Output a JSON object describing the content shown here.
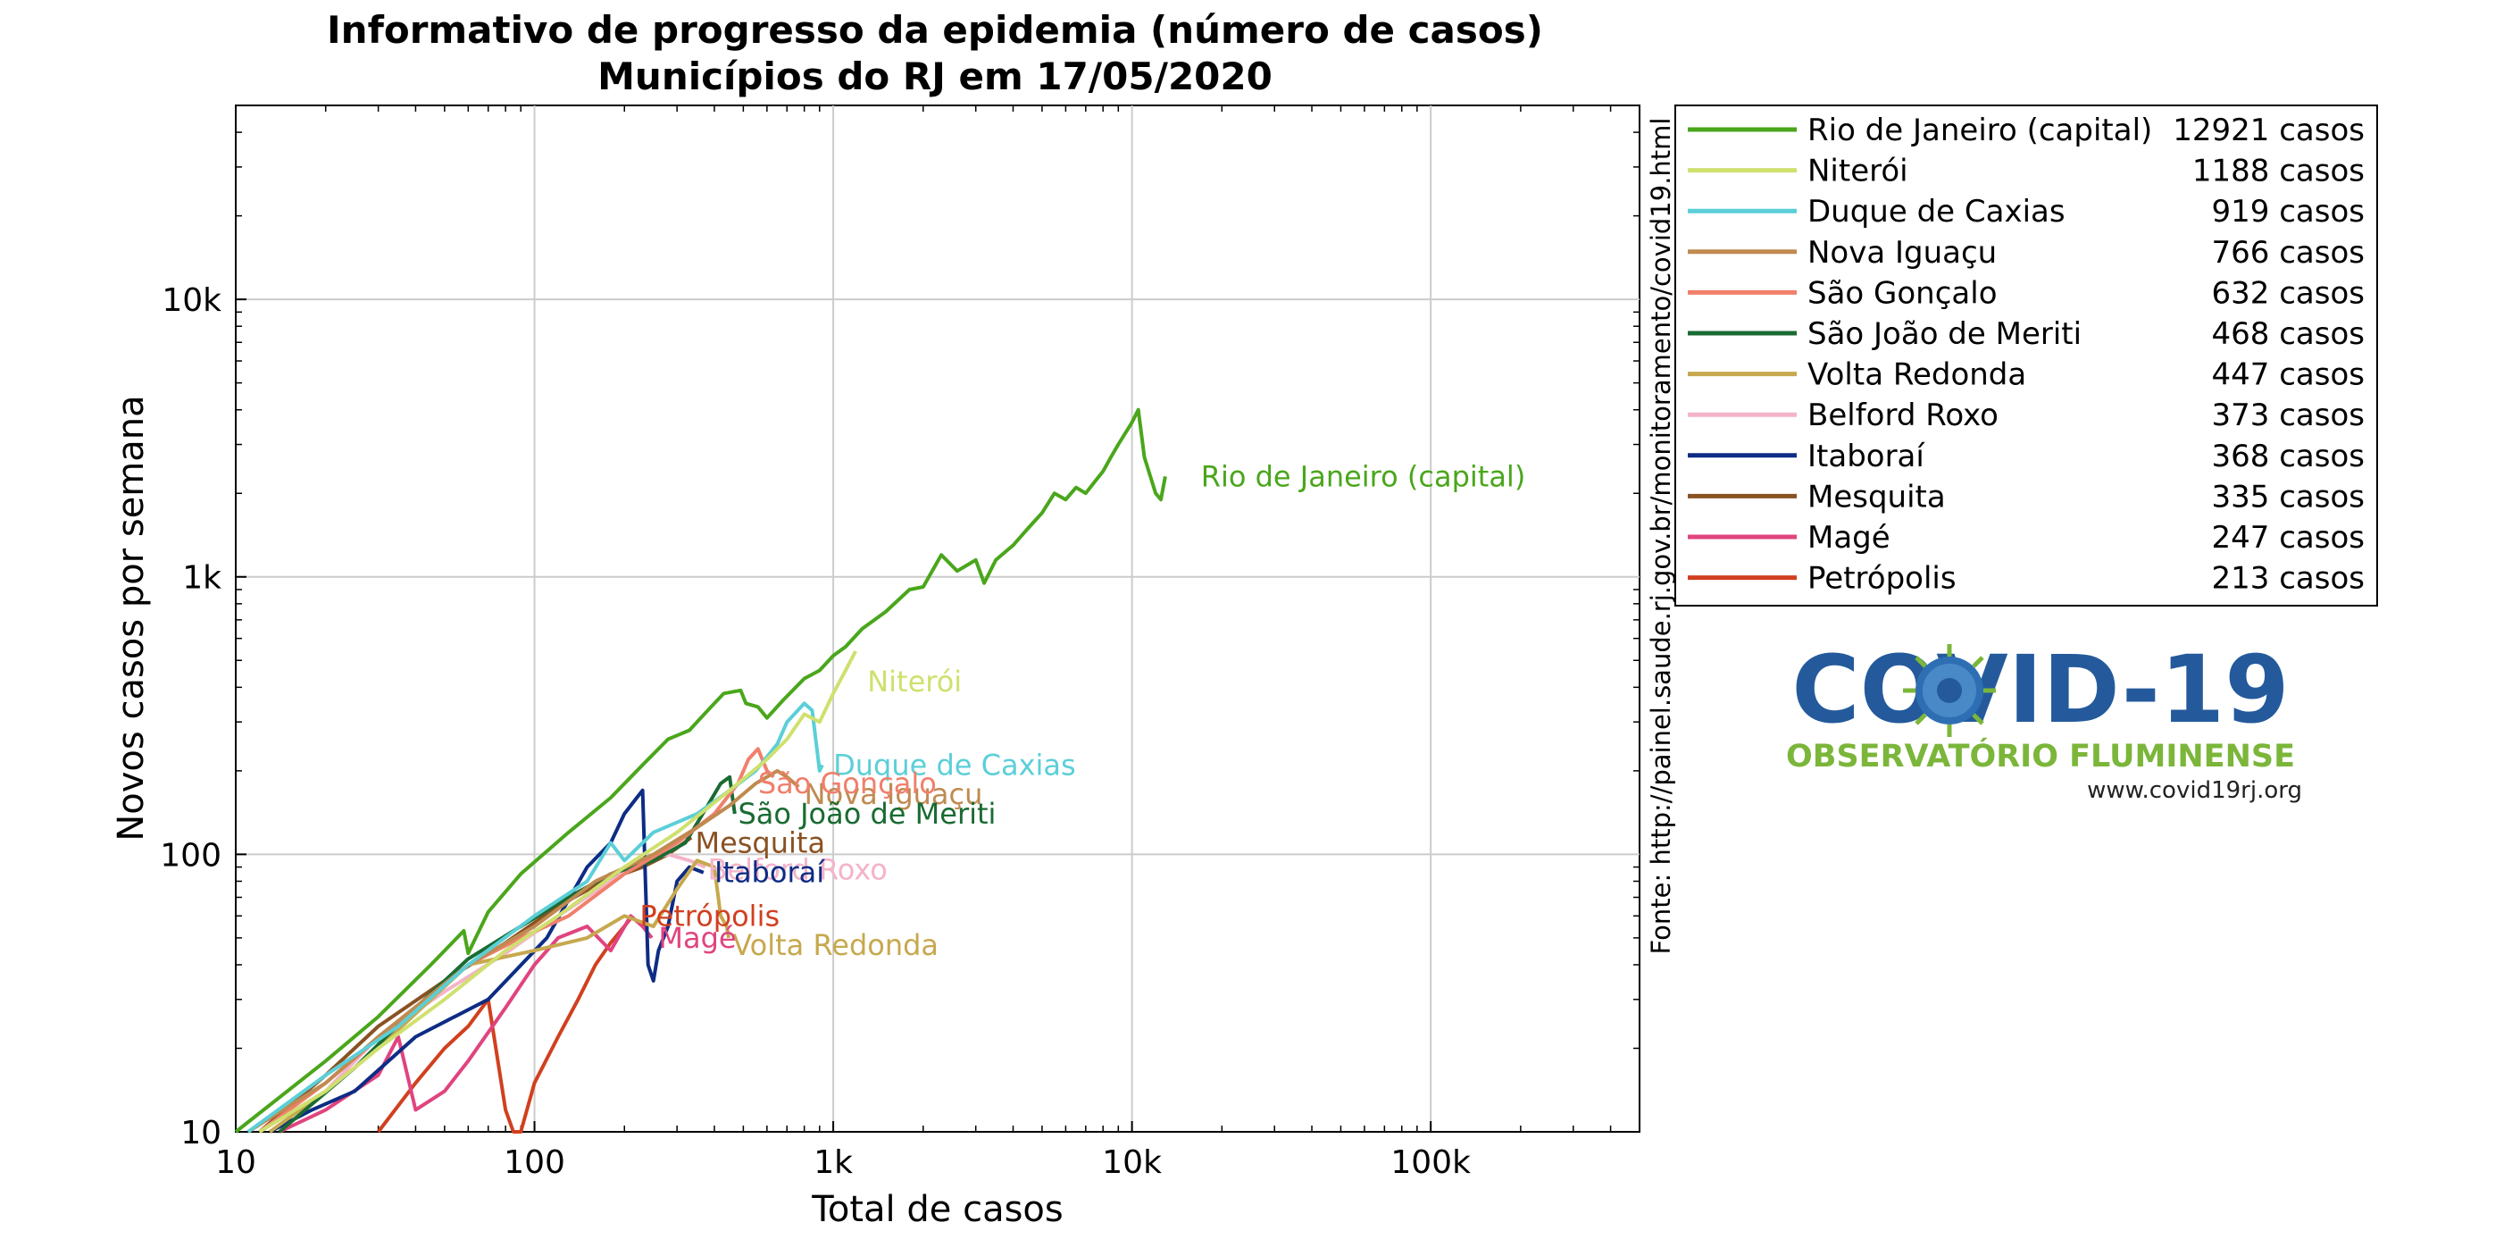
{
  "chart_data": {
    "type": "line",
    "title": "Informativo de progresso da epidemia (número de casos)",
    "subtitle": "Municípios do RJ em 17/05/2020",
    "xlabel": "Total de casos",
    "ylabel": "Novos casos por semana",
    "x_scale": "log",
    "y_scale": "log",
    "xlim": [
      10,
      500000
    ],
    "ylim": [
      10,
      50000
    ],
    "grid": true,
    "legend_position": "right",
    "x_ticks": [
      {
        "v": 10,
        "label": "10"
      },
      {
        "v": 100,
        "label": "100"
      },
      {
        "v": 1000,
        "label": "1k"
      },
      {
        "v": 10000,
        "label": "10k"
      },
      {
        "v": 100000,
        "label": "100k"
      }
    ],
    "y_ticks": [
      {
        "v": 10,
        "label": "10"
      },
      {
        "v": 100,
        "label": "100"
      },
      {
        "v": 1000,
        "label": "1k"
      },
      {
        "v": 10000,
        "label": "10k"
      }
    ],
    "source_note": "Fonte: http://painel.saude.rj.gov.br/monitoramento/covid19.html",
    "series": [
      {
        "name": "Rio de Janeiro (capital)",
        "cases": "12921 casos",
        "color": "#4aa61b",
        "label": "Rio de Janeiro (capital)",
        "label_at": [
          17000,
          2300
        ],
        "points": [
          [
            10,
            10
          ],
          [
            20,
            18
          ],
          [
            30,
            26
          ],
          [
            45,
            40
          ],
          [
            58,
            53
          ],
          [
            60,
            44
          ],
          [
            70,
            62
          ],
          [
            90,
            85
          ],
          [
            130,
            120
          ],
          [
            180,
            160
          ],
          [
            230,
            210
          ],
          [
            280,
            260
          ],
          [
            330,
            280
          ],
          [
            380,
            330
          ],
          [
            430,
            380
          ],
          [
            490,
            390
          ],
          [
            510,
            350
          ],
          [
            560,
            340
          ],
          [
            600,
            310
          ],
          [
            680,
            360
          ],
          [
            800,
            430
          ],
          [
            900,
            460
          ],
          [
            1000,
            520
          ],
          [
            1100,
            560
          ],
          [
            1250,
            650
          ],
          [
            1500,
            750
          ],
          [
            1800,
            900
          ],
          [
            2000,
            920
          ],
          [
            2300,
            1200
          ],
          [
            2600,
            1050
          ],
          [
            3000,
            1150
          ],
          [
            3200,
            950
          ],
          [
            3500,
            1150
          ],
          [
            4000,
            1300
          ],
          [
            4500,
            1500
          ],
          [
            5000,
            1700
          ],
          [
            5500,
            2000
          ],
          [
            6000,
            1900
          ],
          [
            6500,
            2100
          ],
          [
            7000,
            2000
          ],
          [
            7500,
            2200
          ],
          [
            8000,
            2400
          ],
          [
            8500,
            2700
          ],
          [
            9000,
            3000
          ],
          [
            10000,
            3600
          ],
          [
            10500,
            4000
          ],
          [
            11000,
            2700
          ],
          [
            12000,
            2000
          ],
          [
            12500,
            1900
          ],
          [
            12921,
            2300
          ]
        ]
      },
      {
        "name": "Niterói",
        "cases": "1188 casos",
        "color": "#cfe06e",
        "label": "Niterói",
        "label_at": [
          1300,
          420
        ],
        "points": [
          [
            12,
            10
          ],
          [
            20,
            14
          ],
          [
            30,
            20
          ],
          [
            50,
            30
          ],
          [
            80,
            45
          ],
          [
            120,
            60
          ],
          [
            200,
            90
          ],
          [
            300,
            120
          ],
          [
            450,
            170
          ],
          [
            600,
            220
          ],
          [
            700,
            260
          ],
          [
            800,
            320
          ],
          [
            900,
            300
          ],
          [
            1000,
            380
          ],
          [
            1100,
            460
          ],
          [
            1188,
            540
          ]
        ]
      },
      {
        "name": "Duque de Caxias",
        "cases": "919 casos",
        "color": "#5bcfd8",
        "label": "Duque de Caxias",
        "label_at": [
          1000,
          210
        ],
        "points": [
          [
            11,
            10
          ],
          [
            20,
            16
          ],
          [
            35,
            24
          ],
          [
            60,
            40
          ],
          [
            100,
            60
          ],
          [
            150,
            80
          ],
          [
            180,
            110
          ],
          [
            200,
            95
          ],
          [
            250,
            120
          ],
          [
            350,
            140
          ],
          [
            450,
            170
          ],
          [
            550,
            200
          ],
          [
            650,
            250
          ],
          [
            700,
            300
          ],
          [
            800,
            350
          ],
          [
            850,
            330
          ],
          [
            900,
            200
          ],
          [
            919,
            210
          ]
        ]
      },
      {
        "name": "Nova Iguaçu",
        "cases": "766 casos",
        "color": "#c08a50",
        "label": "Nova Iguaçu",
        "label_at": [
          800,
          165
        ],
        "points": [
          [
            11,
            10
          ],
          [
            20,
            15
          ],
          [
            30,
            22
          ],
          [
            60,
            40
          ],
          [
            100,
            55
          ],
          [
            160,
            80
          ],
          [
            250,
            100
          ],
          [
            350,
            125
          ],
          [
            450,
            150
          ],
          [
            550,
            180
          ],
          [
            650,
            200
          ],
          [
            700,
            190
          ],
          [
            766,
            175
          ]
        ]
      },
      {
        "name": "São Gonçalo",
        "cases": "632 casos",
        "color": "#f07f6c",
        "label": "São Gonçalo",
        "label_at": [
          560,
          180
        ],
        "points": [
          [
            12,
            10
          ],
          [
            20,
            15
          ],
          [
            35,
            25
          ],
          [
            60,
            40
          ],
          [
            90,
            50
          ],
          [
            130,
            60
          ],
          [
            200,
            85
          ],
          [
            300,
            110
          ],
          [
            400,
            140
          ],
          [
            480,
            180
          ],
          [
            520,
            220
          ],
          [
            560,
            240
          ],
          [
            600,
            200
          ],
          [
            632,
            190
          ]
        ]
      },
      {
        "name": "São João de Meriti",
        "cases": "468 casos",
        "color": "#1a6b32",
        "label": "São João de Meriti",
        "label_at": [
          480,
          140
        ],
        "points": [
          [
            14,
            10
          ],
          [
            25,
            17
          ],
          [
            40,
            28
          ],
          [
            60,
            42
          ],
          [
            90,
            55
          ],
          [
            130,
            70
          ],
          [
            180,
            85
          ],
          [
            250,
            95
          ],
          [
            320,
            110
          ],
          [
            380,
            150
          ],
          [
            420,
            180
          ],
          [
            450,
            190
          ],
          [
            468,
            140
          ]
        ]
      },
      {
        "name": "Volta Redonda",
        "cases": "447 casos",
        "color": "#c7a84e",
        "label": "Volta Redonda",
        "label_at": [
          460,
          47
        ],
        "points": [
          [
            13,
            10
          ],
          [
            20,
            14
          ],
          [
            30,
            20
          ],
          [
            60,
            40
          ],
          [
            100,
            45
          ],
          [
            150,
            50
          ],
          [
            200,
            60
          ],
          [
            250,
            55
          ],
          [
            300,
            75
          ],
          [
            350,
            95
          ],
          [
            400,
            90
          ],
          [
            420,
            60
          ],
          [
            440,
            55
          ],
          [
            447,
            50
          ]
        ]
      },
      {
        "name": "Belford Roxo",
        "cases": "373 casos",
        "color": "#f4b3c9",
        "label": "Belford Roxo",
        "label_at": [
          380,
          88
        ],
        "points": [
          [
            12,
            10
          ],
          [
            20,
            14
          ],
          [
            30,
            22
          ],
          [
            50,
            32
          ],
          [
            80,
            44
          ],
          [
            120,
            60
          ],
          [
            180,
            80
          ],
          [
            230,
            95
          ],
          [
            280,
            100
          ],
          [
            330,
            95
          ],
          [
            373,
            90
          ]
        ]
      },
      {
        "name": "Itaboraí",
        "cases": "368 casos",
        "color": "#0d2c84",
        "label": "Itaboraí",
        "label_at": [
          400,
          86
        ],
        "points": [
          [
            13,
            10
          ],
          [
            18,
            12
          ],
          [
            25,
            14
          ],
          [
            40,
            22
          ],
          [
            70,
            30
          ],
          [
            110,
            50
          ],
          [
            150,
            90
          ],
          [
            180,
            110
          ],
          [
            200,
            140
          ],
          [
            220,
            160
          ],
          [
            230,
            170
          ],
          [
            240,
            40
          ],
          [
            250,
            35
          ],
          [
            260,
            45
          ],
          [
            280,
            55
          ],
          [
            300,
            80
          ],
          [
            330,
            90
          ],
          [
            368,
            86
          ]
        ]
      },
      {
        "name": "Mesquita",
        "cases": "335 casos",
        "color": "#8a5122",
        "label": "Mesquita",
        "label_at": [
          345,
          110
        ],
        "points": [
          [
            12,
            10
          ],
          [
            20,
            16
          ],
          [
            30,
            24
          ],
          [
            50,
            35
          ],
          [
            80,
            48
          ],
          [
            120,
            65
          ],
          [
            170,
            80
          ],
          [
            230,
            90
          ],
          [
            280,
            100
          ],
          [
            335,
            115
          ]
        ]
      },
      {
        "name": "Magé",
        "cases": "247 casos",
        "color": "#e0447f",
        "label": "Magé",
        "label_at": [
          260,
          50
        ],
        "points": [
          [
            14,
            10
          ],
          [
            20,
            12
          ],
          [
            30,
            16
          ],
          [
            35,
            22
          ],
          [
            40,
            12
          ],
          [
            50,
            14
          ],
          [
            60,
            18
          ],
          [
            80,
            28
          ],
          [
            100,
            40
          ],
          [
            120,
            50
          ],
          [
            150,
            55
          ],
          [
            180,
            45
          ],
          [
            210,
            60
          ],
          [
            230,
            55
          ],
          [
            247,
            50
          ]
        ]
      },
      {
        "name": "Petrópolis",
        "cases": "213 casos",
        "color": "#d1401f",
        "label": "Petrópolis",
        "label_at": [
          225,
          60
        ],
        "points": [
          [
            30,
            10
          ],
          [
            40,
            15
          ],
          [
            50,
            20
          ],
          [
            60,
            24
          ],
          [
            70,
            30
          ],
          [
            80,
            12
          ],
          [
            85,
            10
          ],
          [
            90,
            10
          ],
          [
            100,
            15
          ],
          [
            120,
            22
          ],
          [
            140,
            30
          ],
          [
            160,
            40
          ],
          [
            180,
            48
          ],
          [
            200,
            55
          ],
          [
            213,
            60
          ]
        ]
      }
    ]
  },
  "logo": {
    "title": "COVID-19",
    "subtitle": "OBSERVATÓRIO FLUMINENSE",
    "url": "www.covid19rj.org",
    "title_color": "#245a9c",
    "subtitle_color": "#7bb63a",
    "virus_color": "#2e6fb3"
  }
}
